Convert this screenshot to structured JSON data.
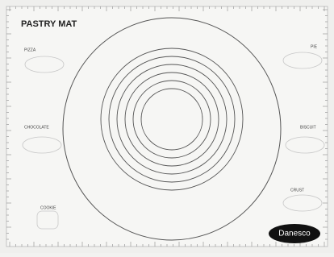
{
  "title": "PASTRY MAT",
  "labels": {
    "pizza": "PIZZA",
    "pie": "PIE",
    "chocolate": "CHOCOLATE",
    "biscuit": "BISCUIT",
    "crust": "CRUST",
    "cookie": "COOKIE"
  },
  "brand": "Danesco"
}
